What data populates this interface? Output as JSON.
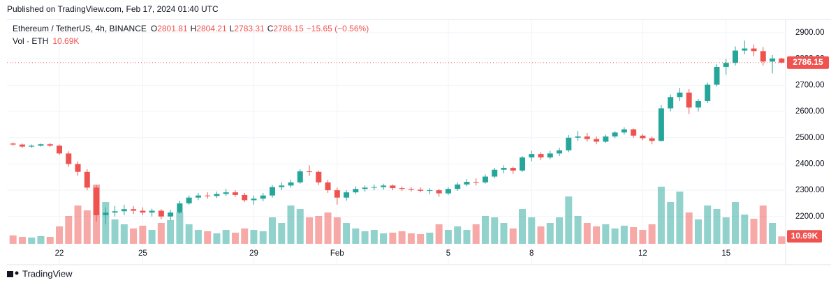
{
  "header": {
    "published": "Published on TradingView.com, Feb 17, 2024 01:40 UTC"
  },
  "footer": {
    "brand": "TradingView"
  },
  "chart_data": {
    "type": "candlestick",
    "legend": {
      "symbol": "Ethereum / TetherUS, 4h, BINANCE",
      "open_label": "O",
      "open": "2801.81",
      "high_label": "H",
      "high": "2804.21",
      "low_label": "L",
      "low": "2783.31",
      "close_label": "C",
      "close": "2786.15",
      "change": "−15.65 (−0.56%)",
      "volume_label": "Vol · ETH",
      "volume": "10.69K"
    },
    "up_color": "#26a69a",
    "down_color": "#ef5350",
    "ylim": [
      2096,
      2945
    ],
    "yticks": [
      {
        "value": 2200,
        "label": "2200.00"
      },
      {
        "value": 2300,
        "label": "2300.00"
      },
      {
        "value": 2400,
        "label": "2400.00"
      },
      {
        "value": 2500,
        "label": "2500.00"
      },
      {
        "value": 2600,
        "label": "2600.00"
      },
      {
        "value": 2700,
        "label": "2700.00"
      },
      {
        "value": 2800,
        "label": "2800.00"
      },
      {
        "value": 2900,
        "label": "2900.00"
      }
    ],
    "grid": true,
    "xticks": [
      {
        "value": 5,
        "label": "22"
      },
      {
        "value": 14,
        "label": "25"
      },
      {
        "value": 26,
        "label": "29"
      },
      {
        "value": 35,
        "label": "Feb"
      },
      {
        "value": 47,
        "label": "5"
      },
      {
        "value": 56,
        "label": "8"
      },
      {
        "value": 68,
        "label": "12"
      },
      {
        "value": 77,
        "label": "15"
      }
    ],
    "ohlc": [
      [
        2478,
        2482,
        2470,
        2474
      ],
      [
        2474,
        2478,
        2462,
        2466
      ],
      [
        2466,
        2474,
        2462,
        2470
      ],
      [
        2470,
        2478,
        2466,
        2475
      ],
      [
        2475,
        2480,
        2465,
        2470
      ],
      [
        2470,
        2474,
        2435,
        2440
      ],
      [
        2440,
        2448,
        2390,
        2400
      ],
      [
        2400,
        2410,
        2355,
        2370
      ],
      [
        2370,
        2380,
        2300,
        2310
      ],
      [
        2310,
        2320,
        2180,
        2205
      ],
      [
        2205,
        2235,
        2170,
        2215
      ],
      [
        2215,
        2240,
        2200,
        2220
      ],
      [
        2220,
        2245,
        2205,
        2228
      ],
      [
        2228,
        2240,
        2210,
        2222
      ],
      [
        2222,
        2235,
        2205,
        2215
      ],
      [
        2215,
        2230,
        2200,
        2222
      ],
      [
        2222,
        2228,
        2190,
        2200
      ],
      [
        2200,
        2225,
        2185,
        2215
      ],
      [
        2215,
        2260,
        2210,
        2250
      ],
      [
        2250,
        2280,
        2245,
        2272
      ],
      [
        2272,
        2290,
        2262,
        2280
      ],
      [
        2280,
        2292,
        2268,
        2278
      ],
      [
        2278,
        2295,
        2270,
        2286
      ],
      [
        2286,
        2305,
        2278,
        2292
      ],
      [
        2292,
        2300,
        2275,
        2282
      ],
      [
        2282,
        2290,
        2255,
        2262
      ],
      [
        2262,
        2280,
        2245,
        2268
      ],
      [
        2268,
        2290,
        2258,
        2280
      ],
      [
        2280,
        2320,
        2272,
        2312
      ],
      [
        2312,
        2330,
        2300,
        2318
      ],
      [
        2318,
        2340,
        2310,
        2330
      ],
      [
        2330,
        2380,
        2325,
        2372
      ],
      [
        2372,
        2395,
        2355,
        2370
      ],
      [
        2370,
        2375,
        2320,
        2330
      ],
      [
        2330,
        2340,
        2290,
        2300
      ],
      [
        2300,
        2310,
        2245,
        2272
      ],
      [
        2272,
        2300,
        2260,
        2292
      ],
      [
        2292,
        2315,
        2285,
        2305
      ],
      [
        2305,
        2318,
        2295,
        2310
      ],
      [
        2310,
        2322,
        2300,
        2312
      ],
      [
        2312,
        2325,
        2302,
        2318
      ],
      [
        2318,
        2322,
        2300,
        2308
      ],
      [
        2308,
        2315,
        2298,
        2305
      ],
      [
        2305,
        2312,
        2295,
        2302
      ],
      [
        2302,
        2310,
        2292,
        2298
      ],
      [
        2298,
        2308,
        2285,
        2300
      ],
      [
        2300,
        2305,
        2275,
        2288
      ],
      [
        2288,
        2312,
        2282,
        2305
      ],
      [
        2305,
        2330,
        2298,
        2322
      ],
      [
        2322,
        2342,
        2315,
        2332
      ],
      [
        2332,
        2345,
        2318,
        2330
      ],
      [
        2330,
        2360,
        2325,
        2352
      ],
      [
        2352,
        2385,
        2345,
        2378
      ],
      [
        2378,
        2395,
        2365,
        2385
      ],
      [
        2385,
        2390,
        2362,
        2375
      ],
      [
        2375,
        2430,
        2370,
        2425
      ],
      [
        2425,
        2450,
        2410,
        2438
      ],
      [
        2438,
        2445,
        2415,
        2425
      ],
      [
        2425,
        2450,
        2418,
        2440
      ],
      [
        2440,
        2462,
        2430,
        2452
      ],
      [
        2452,
        2510,
        2445,
        2500
      ],
      [
        2500,
        2525,
        2488,
        2505
      ],
      [
        2505,
        2518,
        2485,
        2495
      ],
      [
        2495,
        2505,
        2475,
        2485
      ],
      [
        2485,
        2512,
        2480,
        2505
      ],
      [
        2505,
        2525,
        2498,
        2520
      ],
      [
        2520,
        2540,
        2512,
        2532
      ],
      [
        2532,
        2535,
        2500,
        2508
      ],
      [
        2508,
        2515,
        2490,
        2498
      ],
      [
        2498,
        2505,
        2475,
        2488
      ],
      [
        2488,
        2625,
        2485,
        2612
      ],
      [
        2612,
        2665,
        2600,
        2655
      ],
      [
        2655,
        2690,
        2640,
        2672
      ],
      [
        2672,
        2685,
        2590,
        2615
      ],
      [
        2615,
        2648,
        2600,
        2640
      ],
      [
        2640,
        2710,
        2632,
        2702
      ],
      [
        2702,
        2780,
        2695,
        2770
      ],
      [
        2770,
        2800,
        2740,
        2785
      ],
      [
        2785,
        2848,
        2775,
        2832
      ],
      [
        2832,
        2870,
        2818,
        2840
      ],
      [
        2840,
        2855,
        2810,
        2830
      ],
      [
        2830,
        2845,
        2775,
        2790
      ],
      [
        2790,
        2815,
        2745,
        2801.81
      ],
      [
        2801.81,
        2804.21,
        2783.31,
        2786.15
      ]
    ],
    "vlim": [
      0,
      100000
    ],
    "volumes": [
      12000,
      10000,
      9000,
      11000,
      10000,
      25000,
      40000,
      55000,
      48000,
      85000,
      60000,
      35000,
      28000,
      22000,
      26000,
      20000,
      30000,
      34000,
      45000,
      28000,
      20000,
      18000,
      15000,
      20000,
      16000,
      22000,
      20000,
      18000,
      38000,
      30000,
      55000,
      50000,
      38000,
      40000,
      45000,
      38000,
      30000,
      22000,
      18000,
      20000,
      15000,
      16000,
      18000,
      15000,
      14000,
      16000,
      28000,
      20000,
      25000,
      20000,
      28000,
      40000,
      38000,
      30000,
      22000,
      50000,
      38000,
      25000,
      30000,
      38000,
      68000,
      40000,
      30000,
      25000,
      28000,
      22000,
      26000,
      24000,
      20000,
      28000,
      82000,
      60000,
      75000,
      45000,
      35000,
      55000,
      50000,
      38000,
      60000,
      42000,
      36000,
      55000,
      30000,
      10690
    ]
  }
}
